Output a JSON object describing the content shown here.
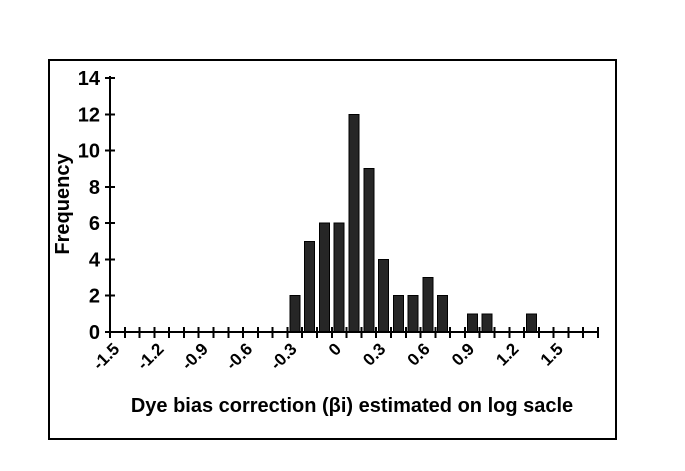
{
  "chart_data": {
    "type": "bar",
    "subtype": "histogram",
    "title": "",
    "xlabel": "Dye bias correction (βi) estimated on log sacle",
    "ylabel": "Frequency",
    "bin_width": 0.1,
    "categories": [
      "-1.5",
      "-1.4",
      "-1.3",
      "-1.2",
      "-1.1",
      "-1.0",
      "-0.9",
      "-0.8",
      "-0.7",
      "-0.6",
      "-0.5",
      "-0.4",
      "-0.3",
      "-0.2",
      "-0.1",
      "0.0",
      "0.1",
      "0.2",
      "0.3",
      "0.4",
      "0.5",
      "0.6",
      "0.7",
      "0.8",
      "0.9",
      "1.0",
      "1.1",
      "1.2",
      "1.3",
      "1.4",
      "1.5",
      "1.6",
      "1.7"
    ],
    "values": [
      0,
      0,
      0,
      0,
      0,
      0,
      0,
      0,
      0,
      0,
      0,
      0,
      2,
      5,
      6,
      6,
      12,
      9,
      4,
      2,
      2,
      3,
      2,
      0,
      1,
      1,
      0,
      0,
      1,
      0,
      0,
      0,
      0
    ],
    "x_tick_labels": [
      "-1.5",
      "-1.2",
      "-0.9",
      "-0.6",
      "-0.3",
      "0",
      "0.3",
      "0.6",
      "0.9",
      "1.2",
      "1.5"
    ],
    "label_every": 3,
    "y_ticks": [
      0,
      2,
      4,
      6,
      8,
      10,
      12,
      14
    ],
    "ylim": [
      0,
      14
    ],
    "xlim": [
      -1.5,
      1.7
    ],
    "grid": false,
    "legend": false,
    "x_tick_label_rotation_deg": 45,
    "bar_color": "#262626",
    "bar_border_color": "#000000",
    "background_color": "#ffffff",
    "text_color": "#000000"
  }
}
